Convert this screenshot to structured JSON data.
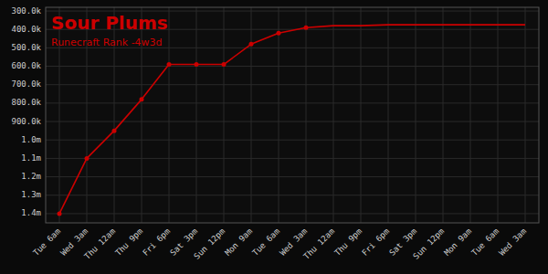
{
  "chart_data": {
    "type": "line",
    "title": "Sour Plums",
    "subtitle": "Runecraft Rank -4w3d",
    "categories": [
      "Tue 6am",
      "Wed 3am",
      "Thu 12am",
      "Thu 9pm",
      "Fri 6pm",
      "Sat 3pm",
      "Sun 12pm",
      "Mon 9am",
      "Tue 6am",
      "Wed 3am",
      "Thu 12am",
      "Thu 9pm",
      "Fri 6pm",
      "Sat 3pm",
      "Sun 12pm",
      "Mon 9am",
      "Tue 6am",
      "Wed 3am"
    ],
    "series": [
      {
        "type": "line",
        "color": "#cc0000",
        "values": [
          1400000,
          1100000,
          950000,
          780000,
          590000,
          590000,
          590000,
          480000,
          420000,
          390000,
          380000,
          380000,
          375000,
          375000,
          375000,
          375000,
          375000,
          375000
        ]
      },
      {
        "type": "scatter",
        "color": "#cc0000",
        "marker": "circle",
        "values": [
          1400000,
          1100000,
          950000,
          780000,
          590000,
          590000,
          590000,
          480000,
          420000,
          390000,
          null,
          null,
          null,
          null,
          null,
          null,
          null,
          null
        ]
      }
    ],
    "ylim": [
      1450000,
      280000
    ],
    "yticks": [
      {
        "value": 300000,
        "label": "300.0k"
      },
      {
        "value": 400000,
        "label": "400.0k"
      },
      {
        "value": 500000,
        "label": "500.0k"
      },
      {
        "value": 600000,
        "label": "600.0k"
      },
      {
        "value": 700000,
        "label": "700.0k"
      },
      {
        "value": 800000,
        "label": "800.0k"
      },
      {
        "value": 900000,
        "label": "900.0k"
      },
      {
        "value": 1000000,
        "label": "1.0m"
      },
      {
        "value": 1100000,
        "label": "1.1m"
      },
      {
        "value": 1200000,
        "label": "1.2m"
      },
      {
        "value": 1300000,
        "label": "1.3m"
      },
      {
        "value": 1400000,
        "label": "1.4m"
      }
    ],
    "grid": true
  }
}
